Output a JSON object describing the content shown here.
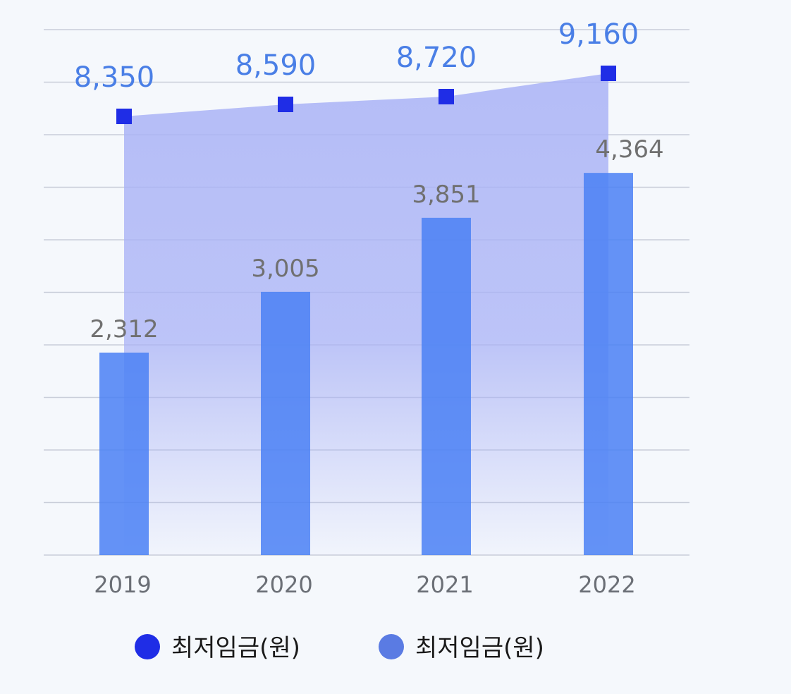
{
  "chart_data": {
    "type": "bar",
    "categories": [
      "2019",
      "2020",
      "2021",
      "2022"
    ],
    "series": [
      {
        "name": "최저임금(원)",
        "kind": "area",
        "color": "#1f2de6",
        "values": [
          8350,
          8590,
          8720,
          9160
        ],
        "labels": [
          "8,350",
          "8,590",
          "8,720",
          "9,160"
        ]
      },
      {
        "name": "최저임금(원)",
        "kind": "bar",
        "color": "#5a7be3",
        "values": [
          2312,
          3005,
          3851,
          4364
        ],
        "labels": [
          "2,312",
          "3,005",
          "3,851",
          "4,364"
        ]
      }
    ],
    "title": "",
    "xlabel": "",
    "ylabel": "",
    "grid": true,
    "legend_position": "bottom",
    "colors": {
      "area_fill": "#a9b2f6",
      "marker": "#1f2de6",
      "bar": "#4a80f5",
      "line_label": "#4a7fe6",
      "bar_label": "#707070",
      "gridline": "#c9ced9"
    }
  }
}
